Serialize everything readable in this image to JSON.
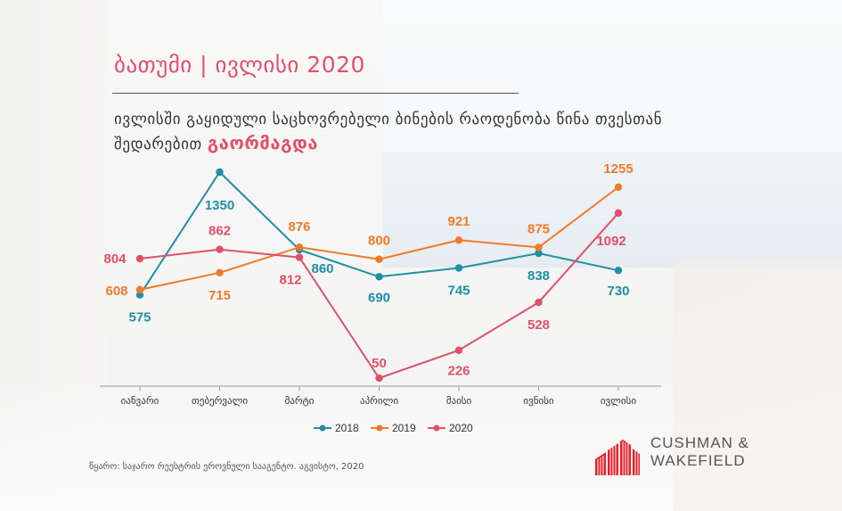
{
  "title": "ბათუმი | ივლისი 2020",
  "subtitle": {
    "line1": "ივლისში გაყიდული საცხოვრებელი ბინების რაოდენობა წინა თვესთან",
    "line2": "შედარებით",
    "highlight": "გაორმაგდა"
  },
  "source": "წყარო: საჯარო რეესტრის ეროვნული სააგენტო. აგვისტო, 2020",
  "logo": {
    "line1": "CUSHMAN &",
    "line2": "WAKEFIELD"
  },
  "chart_data": {
    "type": "line",
    "categories": [
      "იანვარი",
      "თებერვალი",
      "მარტი",
      "აპრილი",
      "მაისი",
      "ივნისი",
      "ივლისი"
    ],
    "series": [
      {
        "name": "2018",
        "color": "#1f8fa6",
        "values": [
          575,
          1350,
          860,
          690,
          745,
          838,
          730
        ]
      },
      {
        "name": "2019",
        "color": "#f07a2a",
        "values": [
          608,
          715,
          876,
          800,
          921,
          875,
          1255
        ]
      },
      {
        "name": "2020",
        "color": "#e0506a",
        "values": [
          804,
          862,
          812,
          50,
          226,
          528,
          1092
        ]
      }
    ],
    "legend_position": "bottom",
    "grid": false
  }
}
